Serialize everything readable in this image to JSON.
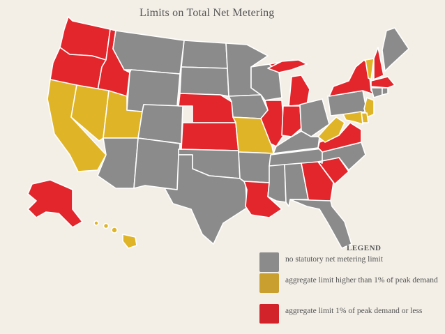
{
  "title": "Limits on Total Net Metering",
  "colors": {
    "none": "#8b8b8b",
    "above": "#e0b427",
    "limited": "#e2262b",
    "background": "#f3efe7"
  },
  "legend": {
    "heading": "LEGEND",
    "items": [
      {
        "key": "none",
        "label": "no statutory net metering limit",
        "color": "#8b8b8b"
      },
      {
        "key": "above",
        "label": "aggregate limit higher than 1% of peak demand",
        "color": "#c9a030"
      },
      {
        "key": "limited",
        "label": "aggregate limit 1% of peak demand or less",
        "color": "#d2232a"
      }
    ]
  },
  "states": {
    "WA": "limited",
    "OR": "limited",
    "ID": "limited",
    "CA": "above",
    "NV": "above",
    "UT": "above",
    "AZ": "none",
    "MT": "none",
    "WY": "none",
    "CO": "none",
    "NM": "none",
    "ND": "none",
    "SD": "none",
    "NE": "limited",
    "KS": "limited",
    "OK": "none",
    "TX": "none",
    "MN": "none",
    "IA": "none",
    "MO": "above",
    "AR": "none",
    "LA": "limited",
    "WI": "none",
    "IL": "limited",
    "MI": "limited",
    "IN": "limited",
    "OH": "none",
    "KY": "none",
    "TN": "none",
    "MS": "none",
    "AL": "none",
    "GA": "limited",
    "FL": "none",
    "SC": "limited",
    "NC": "none",
    "VA": "limited",
    "WV": "above",
    "PA": "none",
    "NY": "limited",
    "VT": "above",
    "NH": "limited",
    "ME": "none",
    "MA": "limited",
    "CT": "none",
    "RI": "none",
    "NJ": "above",
    "DE": "above",
    "MD": "above",
    "AK": "limited",
    "HI": "above"
  }
}
